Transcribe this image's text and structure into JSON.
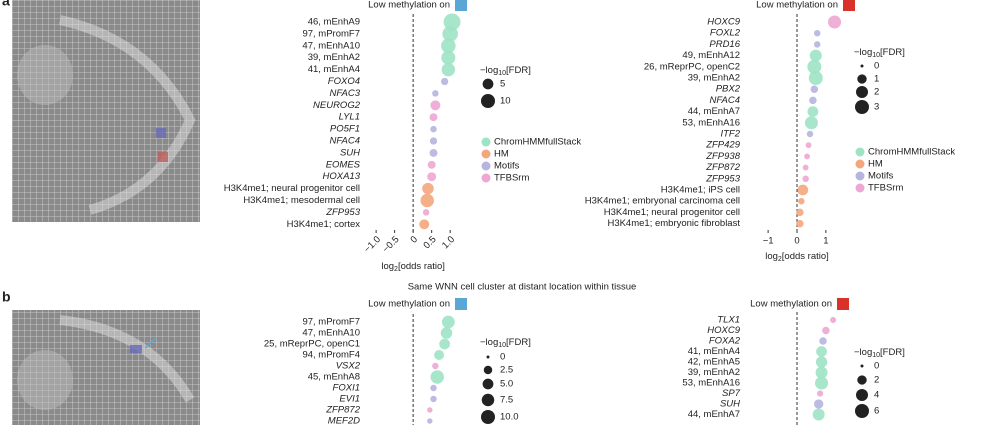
{
  "panel_labels": [
    "a",
    "b"
  ],
  "caption": "Same WNN cell cluster at distant location within tissue",
  "chart_data": [
    {
      "type": "dot",
      "title": "Low methylation on",
      "title_color": "#5aa7d6",
      "categories": [
        "46, mEnhA9",
        "97, mPromF7",
        "47, mEnhA10",
        "39, mEnhA2",
        "41, mEnhA4",
        "FOXO4",
        "NFAC3",
        "NEUROG2",
        "LYL1",
        "PO5F1",
        "NFAC4",
        "SUH",
        "EOMES",
        "HOXA13",
        "H3K4me1; neural progenitor cell",
        "H3K4me1; mesodermal cell",
        "ZFP953",
        "H3K4me1; cortex"
      ],
      "series": [
        {
          "name": "ChromHMMfullStack",
          "color": "#9de3c4",
          "italic": false,
          "values": [
            1.05,
            1,
            0.95,
            0.95,
            0.95,
            null,
            null,
            null,
            null,
            null,
            null,
            null,
            null,
            null,
            null,
            null,
            null,
            null
          ],
          "sizes": [
            16,
            13,
            11,
            10,
            9,
            null,
            null,
            null,
            null,
            null,
            null,
            null,
            null,
            null,
            null,
            null,
            null,
            null
          ]
        },
        {
          "name": "HM",
          "color": "#f4a67c",
          "italic": false,
          "values": [
            null,
            null,
            null,
            null,
            null,
            null,
            null,
            null,
            null,
            null,
            null,
            null,
            null,
            null,
            0.4,
            0.38,
            null,
            0.3
          ],
          "sizes": [
            null,
            null,
            null,
            null,
            null,
            null,
            null,
            null,
            null,
            null,
            null,
            null,
            null,
            null,
            6,
            9,
            null,
            4
          ]
        },
        {
          "name": "Motifs",
          "color": "#b7b4df",
          "italic": true,
          "values": [
            null,
            null,
            null,
            null,
            null,
            0.85,
            0.6,
            null,
            null,
            0.55,
            0.55,
            0.55,
            null,
            null,
            null,
            null,
            null,
            null
          ],
          "sizes": [
            null,
            null,
            null,
            null,
            null,
            1.5,
            1,
            null,
            null,
            1,
            1.5,
            2,
            null,
            null,
            null,
            null,
            null,
            null
          ]
        },
        {
          "name": "TFBSrm",
          "color": "#eea6d2",
          "italic": true,
          "values": [
            null,
            null,
            null,
            null,
            null,
            null,
            null,
            0.6,
            0.55,
            null,
            null,
            null,
            0.5,
            0.5,
            null,
            null,
            0.35,
            null
          ],
          "sizes": [
            null,
            null,
            null,
            null,
            null,
            null,
            null,
            4,
            2,
            null,
            null,
            null,
            2,
            3,
            null,
            null,
            1,
            null
          ]
        }
      ],
      "xlim": [
        -1.3,
        1.4
      ],
      "xticks": [
        {
          "value": -1,
          "label": "−1.0"
        },
        {
          "value": -0.5,
          "label": "−0.5"
        },
        0,
        0.5,
        {
          "value": 1,
          "label": "1.0"
        }
      ],
      "xlabel": [
        "log",
        "2",
        "[odds ratio]"
      ],
      "size_title": [
        "−log",
        "10",
        "[FDR]"
      ],
      "size_legend": [
        5,
        10
      ],
      "legend": true
    },
    {
      "type": "dot",
      "title": "Low methylation on",
      "title_color": "#d9322a",
      "categories": [
        "HOXC9",
        "FOXL2",
        "PRD16",
        "49, mEnhA12",
        "26, mReprPC, openC2",
        "39, mEnhA2",
        "PBX2",
        "NFAC4",
        "44, mEnhA7",
        "53, mEnhA16",
        "ITF2",
        "ZFP429",
        "ZFP938",
        "ZFP872",
        "ZFP953",
        "H3K4me1; iPS cell",
        "H3K4me1; embryonal carcinoma cell",
        "H3K4me1; neural progenitor cell",
        "H3K4me1; embryonic fibroblast"
      ],
      "series": [
        {
          "name": "ChromHMMfullStack",
          "color": "#9de3c4",
          "italic": false,
          "values": [
            null,
            null,
            null,
            0.65,
            0.6,
            0.65,
            null,
            null,
            0.55,
            0.5,
            null,
            null,
            null,
            null,
            null,
            null,
            null,
            null,
            null
          ],
          "sizes": [
            null,
            null,
            null,
            2,
            3,
            3,
            null,
            null,
            1.5,
            2.5,
            null,
            null,
            null,
            null,
            null,
            null,
            null,
            null,
            null
          ]
        },
        {
          "name": "HM",
          "color": "#f4a67c",
          "italic": false,
          "values": [
            null,
            null,
            null,
            null,
            null,
            null,
            null,
            null,
            null,
            null,
            null,
            null,
            null,
            null,
            null,
            0.2,
            0.15,
            0.1,
            0.1
          ],
          "sizes": [
            null,
            null,
            null,
            null,
            null,
            null,
            null,
            null,
            null,
            null,
            null,
            null,
            null,
            null,
            null,
            1.5,
            0.3,
            0.5,
            0.5
          ]
        },
        {
          "name": "Motifs",
          "color": "#b7b4df",
          "italic": true,
          "values": [
            null,
            0.7,
            0.7,
            null,
            null,
            null,
            0.6,
            0.55,
            null,
            null,
            0.45,
            null,
            null,
            null,
            null,
            null,
            null,
            null,
            null
          ],
          "sizes": [
            null,
            0.3,
            0.3,
            null,
            null,
            null,
            0.5,
            0.5,
            null,
            null,
            0.3,
            null,
            null,
            null,
            null,
            null,
            null,
            null,
            null
          ]
        },
        {
          "name": "TFBSrm",
          "color": "#eea6d2",
          "italic": true,
          "values": [
            1.3,
            null,
            null,
            null,
            null,
            null,
            null,
            null,
            null,
            null,
            null,
            0.4,
            0.35,
            0.3,
            0.3,
            null,
            null,
            null,
            null
          ],
          "sizes": [
            2.5,
            null,
            null,
            null,
            null,
            null,
            null,
            null,
            null,
            null,
            null,
            0.2,
            0.2,
            0.2,
            0.3,
            null,
            null,
            null,
            null
          ]
        }
      ],
      "xlim": [
        -1.8,
        1.8
      ],
      "xticks": [
        {
          "value": -1,
          "label": "−1"
        },
        0,
        1
      ],
      "xlabel": [
        "log",
        "2",
        "[odds ratio]"
      ],
      "size_title": [
        "−log",
        "10",
        "[FDR]"
      ],
      "size_legend": [
        0,
        1,
        2,
        3
      ],
      "legend": true
    },
    {
      "type": "dot",
      "title": "Low methylation on",
      "title_color": "#5aa7d6",
      "categories": [
        "97, mPromF7",
        "47, mEnhA10",
        "25, mReprPC, openC1",
        "94, mPromF4",
        "VSX2",
        "45, mEnhA8",
        "FOXI1",
        "EVI1",
        "ZFP872",
        "MEF2D"
      ],
      "series": [
        {
          "color": "#9de3c4",
          "italic": false,
          "values": [
            0.95,
            0.9,
            0.85,
            0.7,
            null,
            0.65,
            null,
            null,
            null,
            null
          ],
          "sizes": [
            8,
            6,
            5,
            4,
            null,
            9,
            null,
            null,
            null,
            null
          ]
        },
        {
          "color": "#b7b4df",
          "italic": true,
          "values": [
            null,
            null,
            null,
            null,
            null,
            null,
            0.55,
            0.55,
            null,
            0.45
          ],
          "sizes": [
            null,
            null,
            null,
            null,
            null,
            null,
            1,
            1,
            null,
            0.5
          ]
        },
        {
          "color": "#eea6d2",
          "italic": true,
          "values": [
            null,
            null,
            null,
            null,
            0.6,
            null,
            null,
            null,
            0.45,
            null
          ],
          "sizes": [
            null,
            null,
            null,
            null,
            1,
            null,
            null,
            null,
            0.5,
            null
          ]
        }
      ],
      "xlim": [
        -1.3,
        1.4
      ],
      "size_title": [
        "−log",
        "10",
        "[FDR]"
      ],
      "size_legend": [
        0,
        2.5,
        {
          "value": 5,
          "label": "5.0"
        },
        7.5,
        {
          "value": 10,
          "label": "10.0"
        }
      ],
      "legend": false
    },
    {
      "type": "dot",
      "title": "Low methylation on",
      "title_color": "#d9322a",
      "categories": [
        "TLX1",
        "HOXC9",
        "FOXA2",
        "41, mEnhA4",
        "42, mEnhA5",
        "39, mEnhA2",
        "53, mEnhA16",
        "SP7",
        "SUH",
        "44, mEnhA7"
      ],
      "series": [
        {
          "color": "#9de3c4",
          "italic": false,
          "values": [
            null,
            null,
            null,
            0.85,
            0.85,
            0.85,
            0.85,
            null,
            null,
            0.75
          ],
          "sizes": [
            null,
            null,
            null,
            3,
            3.5,
            4,
            5,
            null,
            null,
            4
          ]
        },
        {
          "color": "#b7b4df",
          "italic": true,
          "values": [
            null,
            null,
            0.9,
            null,
            null,
            null,
            null,
            null,
            0.75,
            null
          ],
          "sizes": [
            null,
            null,
            1,
            null,
            null,
            null,
            null,
            null,
            2,
            null
          ]
        },
        {
          "color": "#eea6d2",
          "italic": true,
          "values": [
            1.25,
            1,
            null,
            null,
            null,
            null,
            null,
            0.8,
            null,
            null
          ],
          "sizes": [
            0.5,
            1,
            null,
            null,
            null,
            null,
            null,
            0.5,
            null,
            null
          ]
        }
      ],
      "xlim": [
        -1.8,
        1.8
      ],
      "size_title": [
        "−log",
        "10",
        "[FDR]"
      ],
      "size_legend": [
        0,
        2,
        4,
        6
      ],
      "legend": false
    }
  ]
}
